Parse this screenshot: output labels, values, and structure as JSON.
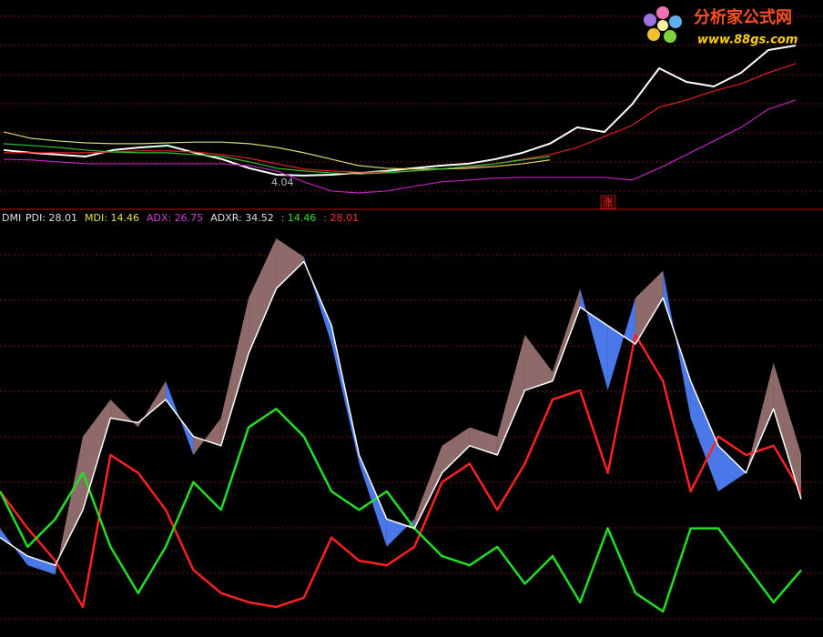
{
  "watermark": {
    "title": "分析家公式网",
    "url": "www.88gs.com"
  },
  "chart_data": [
    {
      "type": "line",
      "annotations": [
        {
          "text": "4.04",
          "color": "#c0c0c0"
        },
        {
          "text": "涨",
          "color": "#ff3030"
        }
      ],
      "series": [
        {
          "color": "#ffffff",
          "values": [
            4.76,
            4.69,
            4.64,
            4.59,
            4.76,
            4.83,
            4.88,
            4.69,
            4.52,
            4.28,
            4.11,
            4.09,
            4.11,
            4.16,
            4.21,
            4.28,
            4.35,
            4.4,
            4.52,
            4.69,
            4.93,
            5.36,
            5.24,
            5.96,
            6.92,
            6.56,
            6.44,
            6.8,
            7.4,
            7.52
          ]
        },
        {
          "color": "#e02020",
          "values": [
            4.69,
            4.69,
            4.69,
            4.69,
            4.71,
            4.74,
            4.74,
            4.71,
            4.64,
            4.54,
            4.4,
            4.26,
            4.21,
            4.18,
            4.18,
            4.21,
            4.26,
            4.3,
            4.4,
            4.52,
            4.64,
            4.83,
            5.12,
            5.41,
            5.89,
            6.08,
            6.32,
            6.51,
            6.8,
            7.04
          ]
        },
        {
          "color": "#c020c0",
          "values": [
            4.52,
            4.5,
            4.45,
            4.4,
            4.4,
            4.4,
            4.4,
            4.4,
            4.4,
            4.35,
            4.21,
            3.92,
            3.68,
            3.63,
            3.68,
            3.8,
            3.92,
            3.97,
            4.02,
            4.04,
            4.04,
            4.04,
            4.04,
            3.97,
            4.28,
            4.64,
            5.0,
            5.36,
            5.84,
            6.08
          ]
        },
        {
          "color": "#d8d870",
          "values": [
            5.24,
            5.07,
            5.0,
            4.95,
            4.93,
            4.93,
            4.95,
            4.97,
            4.97,
            4.93,
            4.83,
            4.69,
            4.52,
            4.35,
            4.28,
            4.26,
            4.26,
            4.28,
            4.33,
            4.4,
            4.5,
            null,
            null,
            null,
            null,
            null,
            null,
            null,
            null,
            null
          ]
        },
        {
          "color": "#30c030",
          "values": [
            4.93,
            4.88,
            4.83,
            4.76,
            4.71,
            4.69,
            4.69,
            4.64,
            4.59,
            4.45,
            4.28,
            4.21,
            4.16,
            4.13,
            4.16,
            4.21,
            4.26,
            4.33,
            4.4,
            4.5,
            4.59,
            null,
            null,
            null,
            null,
            null,
            null,
            null,
            null,
            null
          ]
        }
      ]
    },
    {
      "type": "dmi",
      "title": "DMI",
      "annotations": [
        {
          "text": ": 14.46",
          "color": "#30e030"
        },
        {
          "text": ": 28.01",
          "color": "#ff3030"
        }
      ],
      "fill_colors": {
        "adxr_above": "#8e6a6a",
        "adx_above": "#4a78e8"
      },
      "series": [
        {
          "name": "PDI: 28.01",
          "color": "#ff2020",
          "label_color": "#e0e0e0",
          "values": [
            28.1,
            21.7,
            16.1,
            8.1,
            34.4,
            31.3,
            24.9,
            14.5,
            10.5,
            8.9,
            8.1,
            9.7,
            20.1,
            16.1,
            15.3,
            18.5,
            29.7,
            32.9,
            24.9,
            32.9,
            44.0,
            45.6,
            31.3,
            55.2,
            47.2,
            28.1,
            37.6,
            34.4,
            36.0,
            28.01
          ]
        },
        {
          "name": "MDI: 14.46",
          "color": "#20e020",
          "label_color": "#e0e040",
          "values": [
            28.1,
            18.5,
            23.3,
            31.3,
            18.5,
            10.5,
            18.5,
            29.7,
            24.9,
            39.2,
            42.4,
            37.6,
            28.1,
            24.9,
            28.1,
            21.7,
            16.9,
            15.3,
            18.5,
            12.1,
            16.9,
            8.9,
            21.7,
            10.5,
            7.3,
            21.7,
            21.7,
            15.3,
            8.9,
            14.46
          ]
        },
        {
          "name": "ADX: 26.75",
          "color": "#ffffff",
          "label_color": "#d040d0",
          "values": [
            20.1,
            16.9,
            15.3,
            24.9,
            40.8,
            40.0,
            44.0,
            37.6,
            36.0,
            52.0,
            63.2,
            67.9,
            56.8,
            34.4,
            23.3,
            21.7,
            31.3,
            36.0,
            34.4,
            45.6,
            47.2,
            60.0,
            56.8,
            53.6,
            61.6,
            47.2,
            36.0,
            31.3,
            42.4,
            26.75
          ]
        },
        {
          "name": "ADXR: 34.52",
          "color": "#8e6a6a",
          "label_color": "#e0e0e0",
          "values": [
            21.7,
            15.3,
            13.7,
            37.6,
            44.0,
            39.2,
            47.2,
            34.4,
            40.8,
            61.6,
            71.9,
            68.7,
            53.6,
            32.9,
            18.5,
            23.3,
            36.0,
            39.2,
            37.6,
            55.2,
            48.8,
            63.2,
            45.6,
            61.6,
            66.3,
            40.8,
            28.1,
            31.3,
            50.4,
            34.52
          ]
        }
      ]
    }
  ]
}
